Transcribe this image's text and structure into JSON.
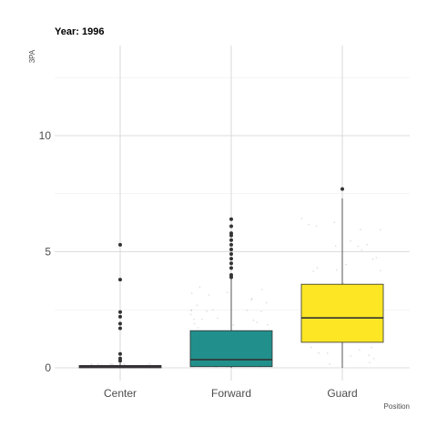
{
  "chart_data": {
    "type": "box",
    "title": "Year: 1996",
    "ylabel": "3PA",
    "xlabel": "Position",
    "categories": [
      "Center",
      "Forward",
      "Guard"
    ],
    "ylim": [
      0,
      14
    ],
    "yticks": [
      0,
      5,
      10
    ],
    "grid": true,
    "legend": "none",
    "series": [
      {
        "category": "Center",
        "fill": "#440154",
        "min": 0,
        "q1": 0,
        "median": 0.05,
        "q3": 0.1,
        "max": 0.2,
        "outliers": [
          5.3,
          3.8,
          2.4,
          2.2,
          1.9,
          1.7,
          0.6,
          0.4,
          0.3
        ]
      },
      {
        "category": "Forward",
        "fill": "#21908C",
        "min": 0,
        "q1": 0.05,
        "median": 0.35,
        "q3": 1.6,
        "max": 3.9,
        "outliers": [
          6.4,
          6.1,
          5.8,
          5.7,
          5.5,
          5.3,
          5.1,
          4.9,
          4.7,
          4.5,
          4.3,
          4.0,
          3.9
        ]
      },
      {
        "category": "Guard",
        "fill": "#FDE725",
        "min": 0,
        "q1": 1.1,
        "median": 2.15,
        "q3": 3.6,
        "max": 7.3,
        "outliers": [
          7.7
        ]
      }
    ]
  }
}
